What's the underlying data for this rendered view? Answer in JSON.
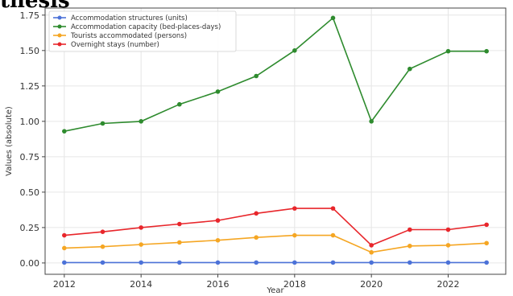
{
  "header": {
    "title_fragment": "thesis"
  },
  "chart_data": {
    "type": "line",
    "title": "",
    "xlabel": "Year",
    "ylabel": "Values (absolute)",
    "x": [
      2012,
      2013,
      2014,
      2015,
      2016,
      2017,
      2018,
      2019,
      2020,
      2021,
      2022,
      2023
    ],
    "xticks": [
      2012,
      2014,
      2016,
      2018,
      2020,
      2022
    ],
    "xtick_labels": [
      "2012",
      "2014",
      "2016",
      "2018",
      "2020",
      "2022"
    ],
    "xlim": [
      2011.5,
      2023.5
    ],
    "ylim": [
      -0.08,
      1.8
    ],
    "yticks": [
      0.0,
      0.25,
      0.5,
      0.75,
      1.0,
      1.25,
      1.5,
      1.75
    ],
    "ytick_labels": [
      "0.00",
      "0.25",
      "0.50",
      "0.75",
      "1.00",
      "1.25",
      "1.50",
      "1.75"
    ],
    "grid": true,
    "legend_position": "top-left",
    "series": [
      {
        "name": "Accommodation structures (units)",
        "color": "#4c72d8",
        "values": [
          0.003,
          0.003,
          0.003,
          0.003,
          0.003,
          0.003,
          0.003,
          0.003,
          0.003,
          0.003,
          0.003,
          0.003
        ]
      },
      {
        "name": "Accommodation capacity (bed-places-days)",
        "color": "#2e8b2e",
        "values": [
          0.93,
          0.985,
          1.0,
          1.12,
          1.21,
          1.32,
          1.5,
          1.73,
          1.0,
          1.37,
          1.495,
          1.495
        ]
      },
      {
        "name": "Tourists accommodated (persons)",
        "color": "#f5a623",
        "values": [
          0.105,
          0.115,
          0.13,
          0.145,
          0.16,
          0.18,
          0.195,
          0.195,
          0.075,
          0.12,
          0.125,
          0.14
        ]
      },
      {
        "name": "Overnight stays (number)",
        "color": "#e8262b",
        "values": [
          0.195,
          0.22,
          0.25,
          0.275,
          0.3,
          0.35,
          0.385,
          0.385,
          0.125,
          0.235,
          0.235,
          0.27
        ]
      }
    ]
  }
}
